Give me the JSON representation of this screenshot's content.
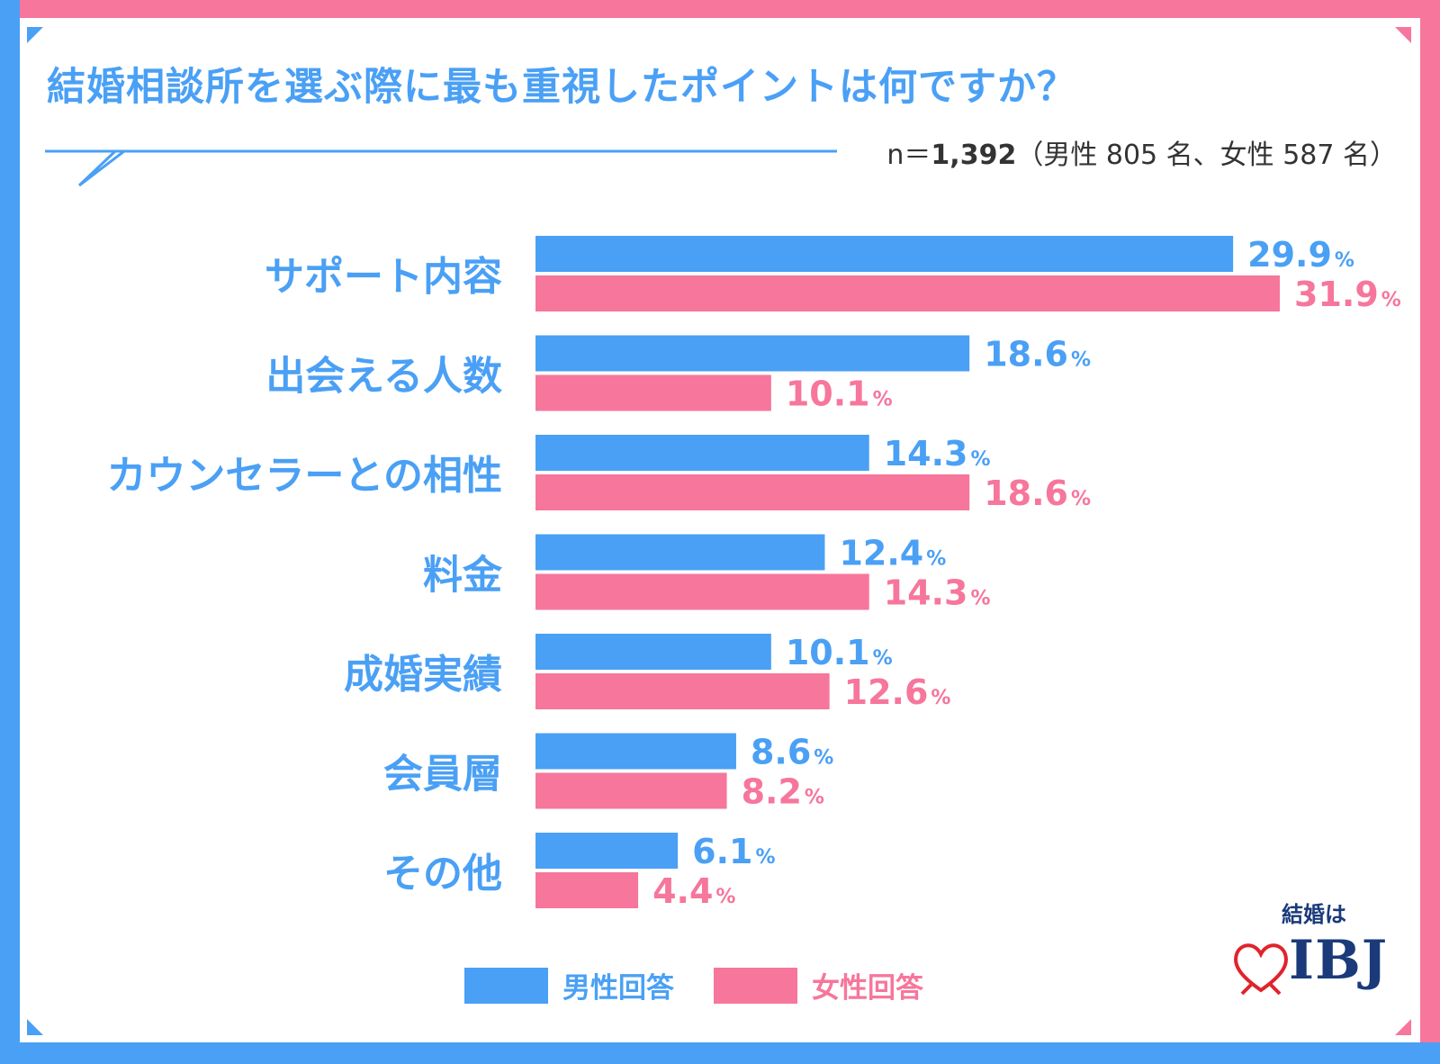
{
  "title": "結婚相談所を選ぶ際に最も重視したポイントは何ですか？",
  "sample": {
    "prefix": "n＝",
    "total": "1,392",
    "breakdown": "（男性 805 名、女性 587 名）"
  },
  "legend": {
    "male": "男性回答",
    "female": "女性回答"
  },
  "logo": {
    "tagline": "結婚は",
    "brand": "IBJ"
  },
  "colors": {
    "male": "#4aa0f5",
    "female": "#f6769c",
    "frame_blue": "#4aa0f5",
    "frame_pink": "#f6769c",
    "logo_navy": "#1a3a7a",
    "logo_red": "#e0242c"
  },
  "chart_data": {
    "type": "bar",
    "orientation": "horizontal",
    "categories": [
      "サポート内容",
      "出会える人数",
      "カウンセラーとの相性",
      "料金",
      "成婚実績",
      "会員層",
      "その他"
    ],
    "unit": "%",
    "series": [
      {
        "name": "男性回答",
        "values": [
          29.9,
          18.6,
          14.3,
          12.4,
          10.1,
          8.6,
          6.1
        ]
      },
      {
        "name": "女性回答",
        "values": [
          31.9,
          10.1,
          18.6,
          14.3,
          12.6,
          8.2,
          4.4
        ]
      }
    ],
    "xlim": [
      0,
      31.9
    ],
    "grid": false,
    "legend_position": "bottom"
  }
}
